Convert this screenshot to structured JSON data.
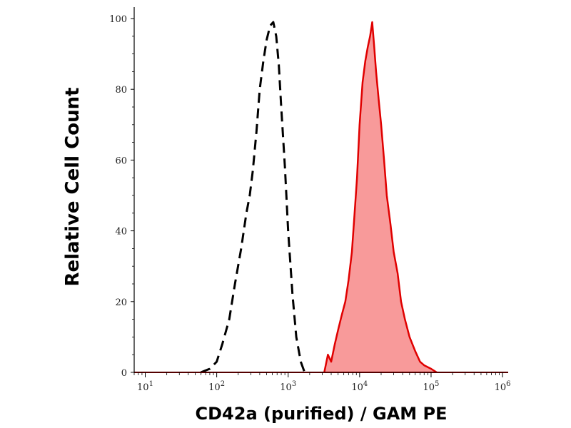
{
  "chart_data": {
    "type": "area",
    "xlabel": "CD42a (purified) / GAM PE",
    "ylabel": "Relative Cell Count",
    "x_scale": "log",
    "xlim": [
      7,
      1200000.0
    ],
    "ylim": [
      0,
      100
    ],
    "x_ticks": [
      {
        "value": 10,
        "base": "10",
        "exp": "1"
      },
      {
        "value": 100,
        "base": "10",
        "exp": "2"
      },
      {
        "value": 1000,
        "base": "10",
        "exp": "3"
      },
      {
        "value": 10000,
        "base": "10",
        "exp": "4"
      },
      {
        "value": 100000,
        "base": "10",
        "exp": "5"
      },
      {
        "value": 1000000,
        "base": "10",
        "exp": "6"
      }
    ],
    "y_ticks": [
      0,
      20,
      40,
      60,
      80,
      100
    ],
    "grid": false,
    "legend": "none",
    "series": [
      {
        "style": "dashed",
        "color": "#000000",
        "fill": "none",
        "x": [
          60,
          80,
          100,
          120,
          150,
          180,
          220,
          260,
          290,
          320,
          360,
          400,
          450,
          500,
          560,
          620,
          680,
          740,
          800,
          900,
          1000,
          1150,
          1300,
          1500,
          1700
        ],
        "y": [
          0,
          1,
          3,
          8,
          15,
          25,
          35,
          45,
          50,
          57,
          68,
          80,
          88,
          94,
          98,
          99,
          95,
          87,
          75,
          58,
          40,
          22,
          10,
          3,
          0
        ]
      },
      {
        "style": "solid",
        "color": "#e00000",
        "fill": "#f89a9a",
        "x": [
          3200,
          3600,
          4000,
          4500,
          5000,
          5600,
          6300,
          7000,
          7800,
          8500,
          9200,
          10000,
          11000,
          12000,
          13000,
          14000,
          15000,
          16000,
          17000,
          18500,
          20000,
          22000,
          24000,
          27000,
          30000,
          34000,
          38000,
          43000,
          50000,
          60000,
          70000,
          80000,
          100000,
          120000
        ],
        "y": [
          0,
          5,
          3,
          8,
          12,
          16,
          20,
          26,
          34,
          45,
          55,
          70,
          82,
          88,
          92,
          95,
          99,
          92,
          85,
          77,
          70,
          60,
          50,
          42,
          34,
          28,
          20,
          15,
          10,
          6,
          3,
          2,
          1,
          0
        ]
      }
    ]
  },
  "colors": {
    "axis": "#000000",
    "isotype_line": "#000000",
    "stained_line": "#e00000",
    "stained_fill": "#f89a9a"
  }
}
